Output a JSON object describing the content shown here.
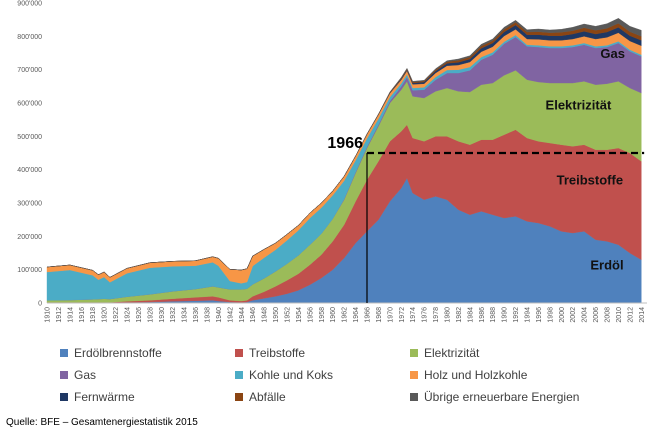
{
  "chart_data": {
    "type": "area",
    "stacked": true,
    "title": "",
    "xlabel": "",
    "ylabel": "",
    "ylim": [
      0,
      900000
    ],
    "yticks": [
      "0",
      "100'000",
      "200'000",
      "300'000",
      "400'000",
      "500'000",
      "600'000",
      "700'000",
      "800'000",
      "900'000"
    ],
    "xticks": [
      "1910",
      "1912",
      "1914",
      "1916",
      "1918",
      "1920",
      "1922",
      "1924",
      "1926",
      "1928",
      "1930",
      "1932",
      "1934",
      "1936",
      "1938",
      "1940",
      "1942",
      "1944",
      "1946",
      "1948",
      "1950",
      "1952",
      "1954",
      "1956",
      "1958",
      "1960",
      "1962",
      "1964",
      "1966",
      "1968",
      "1970",
      "1972",
      "1974",
      "1976",
      "1978",
      "1980",
      "1982",
      "1984",
      "1986",
      "1988",
      "1990",
      "1992",
      "1994",
      "1996",
      "1998",
      "2000",
      "2002",
      "2004",
      "2006",
      "2008",
      "2010",
      "2012",
      "2014"
    ],
    "x": [
      1910,
      1914,
      1918,
      1919,
      1920,
      1921,
      1924,
      1928,
      1932,
      1936,
      1939,
      1940,
      1942,
      1944,
      1945,
      1946,
      1948,
      1950,
      1952,
      1954,
      1956,
      1958,
      1960,
      1962,
      1964,
      1966,
      1968,
      1970,
      1972,
      1973,
      1974,
      1976,
      1978,
      1980,
      1982,
      1984,
      1986,
      1988,
      1990,
      1992,
      1994,
      1996,
      1998,
      2000,
      2002,
      2004,
      2006,
      2008,
      2010,
      2012,
      2014
    ],
    "series": [
      {
        "name": "Erdölbrennstoffe",
        "color": "#4f81bd",
        "values": [
          1000,
          1000,
          1000,
          1000,
          1000,
          1000,
          2000,
          3000,
          5000,
          7000,
          8000,
          6000,
          3000,
          2000,
          3000,
          8000,
          14000,
          20000,
          28000,
          38000,
          55000,
          75000,
          100000,
          135000,
          180000,
          215000,
          250000,
          305000,
          345000,
          375000,
          330000,
          310000,
          320000,
          310000,
          280000,
          265000,
          275000,
          265000,
          255000,
          260000,
          245000,
          240000,
          230000,
          215000,
          210000,
          215000,
          190000,
          185000,
          175000,
          150000,
          130000
        ]
      },
      {
        "name": "Treibstoffe",
        "color": "#c0504d",
        "values": [
          1000,
          1000,
          1000,
          1000,
          1000,
          1000,
          3000,
          5000,
          8000,
          10000,
          12000,
          11000,
          5000,
          4000,
          5000,
          12000,
          20000,
          30000,
          40000,
          50000,
          60000,
          70000,
          85000,
          100000,
          125000,
          155000,
          175000,
          180000,
          170000,
          160000,
          165000,
          175000,
          180000,
          190000,
          205000,
          210000,
          215000,
          225000,
          250000,
          260000,
          250000,
          245000,
          250000,
          260000,
          260000,
          260000,
          270000,
          275000,
          290000,
          300000,
          295000
        ]
      },
      {
        "name": "Elektrizität",
        "color": "#9bbb59",
        "values": [
          6000,
          7000,
          9000,
          10000,
          11000,
          10000,
          14000,
          18000,
          22000,
          25000,
          30000,
          30000,
          33000,
          35000,
          35000,
          36000,
          40000,
          45000,
          50000,
          55000,
          60000,
          63000,
          68000,
          75000,
          85000,
          95000,
          105000,
          115000,
          125000,
          130000,
          125000,
          130000,
          135000,
          145000,
          150000,
          158000,
          165000,
          170000,
          178000,
          178000,
          175000,
          178000,
          180000,
          185000,
          190000,
          190000,
          195000,
          198000,
          200000,
          195000,
          205000
        ]
      },
      {
        "name": "Gas",
        "color": "#8064a2",
        "values": [
          0,
          0,
          0,
          0,
          0,
          0,
          0,
          0,
          0,
          0,
          0,
          0,
          0,
          0,
          0,
          0,
          0,
          0,
          0,
          0,
          0,
          0,
          0,
          2000,
          3000,
          4000,
          5000,
          6000,
          10000,
          13000,
          18000,
          25000,
          35000,
          45000,
          55000,
          65000,
          75000,
          85000,
          95000,
          100000,
          100000,
          105000,
          105000,
          105000,
          108000,
          110000,
          110000,
          110000,
          115000,
          110000,
          110000
        ]
      },
      {
        "name": "Kohle und Koks",
        "color": "#4bacc6",
        "values": [
          85000,
          90000,
          72000,
          58000,
          65000,
          50000,
          70000,
          80000,
          75000,
          70000,
          72000,
          65000,
          25000,
          18000,
          20000,
          55000,
          62000,
          65000,
          70000,
          75000,
          80000,
          78000,
          70000,
          55000,
          35000,
          25000,
          18000,
          12000,
          9000,
          8000,
          7000,
          7000,
          8000,
          9000,
          10000,
          10000,
          8000,
          7000,
          6000,
          6000,
          5000,
          5000,
          5000,
          5000,
          5000,
          5000,
          5000,
          5000,
          5000,
          5000,
          5000
        ]
      },
      {
        "name": "Holz und Holzkohle",
        "color": "#f79646",
        "values": [
          15000,
          15000,
          15000,
          15000,
          15000,
          15000,
          15000,
          15000,
          15000,
          15000,
          17000,
          22000,
          35000,
          40000,
          40000,
          30000,
          25000,
          20000,
          18000,
          15000,
          15000,
          14000,
          13000,
          13000,
          13000,
          12000,
          12000,
          11000,
          11000,
          11000,
          11000,
          11000,
          12000,
          13000,
          14000,
          15000,
          16000,
          17000,
          17000,
          17000,
          17000,
          18000,
          18000,
          18000,
          19000,
          20000,
          22000,
          24000,
          26000,
          26000,
          27000
        ]
      },
      {
        "name": "Fernwärme",
        "color": "#1f3864",
        "values": [
          0,
          0,
          0,
          0,
          0,
          0,
          0,
          0,
          0,
          0,
          0,
          0,
          0,
          0,
          0,
          0,
          0,
          0,
          0,
          0,
          0,
          0,
          0,
          0,
          0,
          1000,
          1000,
          2000,
          3000,
          3000,
          4000,
          5000,
          6000,
          7000,
          8000,
          9000,
          10000,
          11000,
          12000,
          13000,
          13000,
          14000,
          14000,
          14000,
          15000,
          15000,
          15000,
          16000,
          16000,
          16000,
          16000
        ]
      },
      {
        "name": "Abfälle",
        "color": "#8b4513",
        "values": [
          0,
          0,
          0,
          0,
          0,
          0,
          0,
          0,
          0,
          0,
          0,
          0,
          0,
          0,
          0,
          0,
          0,
          0,
          0,
          0,
          0,
          0,
          0,
          0,
          0,
          0,
          0,
          1000,
          2000,
          2000,
          3000,
          3000,
          4000,
          5000,
          6000,
          6000,
          7000,
          7000,
          8000,
          8000,
          8000,
          9000,
          9000,
          10000,
          10000,
          11000,
          11000,
          11000,
          12000,
          12000,
          12000
        ]
      },
      {
        "name": "Übrige erneuerbare Energien",
        "color": "#595959",
        "values": [
          0,
          0,
          0,
          0,
          0,
          0,
          0,
          0,
          0,
          0,
          0,
          0,
          0,
          0,
          0,
          0,
          0,
          0,
          0,
          0,
          0,
          0,
          0,
          0,
          0,
          0,
          0,
          1000,
          2000,
          2000,
          2000,
          2000,
          3000,
          3000,
          4000,
          4000,
          5000,
          5000,
          6000,
          6000,
          7000,
          8000,
          8000,
          9000,
          10000,
          11000,
          12000,
          14000,
          15000,
          16000,
          18000
        ]
      }
    ],
    "annotations": [
      {
        "text": "1966",
        "x": 1966,
        "y": 450000
      },
      {
        "text": "Erdöl",
        "x": 2008,
        "y": 100000
      },
      {
        "text": "Treibstoffe",
        "x": 2005,
        "y": 355000
      },
      {
        "text": "Elektrizität",
        "x": 2003,
        "y": 580000
      },
      {
        "text": "Gas",
        "x": 2009,
        "y": 735000
      }
    ],
    "grid": false,
    "legend_position": "bottom"
  },
  "source": "Quelle: BFE – Gesamtenergiestatistik 2015"
}
